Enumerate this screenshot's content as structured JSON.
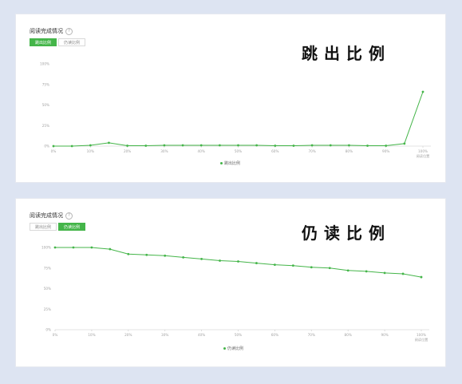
{
  "panels": [
    {
      "title": "阅读完成情况",
      "tabs": [
        {
          "label": "跳出比例",
          "active": true
        },
        {
          "label": "仍读比例",
          "active": false
        }
      ],
      "overlay_text": "跳出比例",
      "legend": "跳出比例",
      "help_icon": "?"
    },
    {
      "title": "阅读完成情况",
      "tabs": [
        {
          "label": "跳出比例",
          "active": false
        },
        {
          "label": "仍读比例",
          "active": true
        }
      ],
      "overlay_text": "仍读比例",
      "legend": "仍读比例",
      "help_icon": "?"
    }
  ],
  "chart_data": [
    {
      "type": "line",
      "y_ticks": [
        "100%",
        "75%",
        "50%",
        "25%",
        "0%"
      ],
      "x_ticks": [
        "0%",
        "10%",
        "20%",
        "30%",
        "40%",
        "50%",
        "60%",
        "70%",
        "80%",
        "90%",
        "100%"
      ],
      "x_axis_caption": "阅读位置",
      "ylim": [
        0,
        100
      ],
      "xlim": [
        0,
        100
      ],
      "color": "#44b549",
      "series": [
        {
          "name": "跳出比例",
          "x": [
            0,
            5,
            10,
            15,
            20,
            25,
            30,
            35,
            40,
            45,
            50,
            55,
            60,
            65,
            70,
            75,
            80,
            85,
            90,
            95,
            100
          ],
          "y": [
            0,
            0,
            1,
            4,
            0.5,
            0.5,
            1,
            1,
            1,
            1,
            1,
            1,
            0.5,
            0.5,
            1,
            1,
            1,
            0.5,
            0.5,
            3,
            66
          ]
        }
      ]
    },
    {
      "type": "line",
      "y_ticks": [
        "100%",
        "75%",
        "50%",
        "25%",
        "0%"
      ],
      "x_ticks": [
        "0%",
        "10%",
        "20%",
        "30%",
        "40%",
        "50%",
        "60%",
        "70%",
        "80%",
        "90%",
        "100%"
      ],
      "x_axis_caption": "阅读位置",
      "ylim": [
        0,
        100
      ],
      "xlim": [
        0,
        100
      ],
      "color": "#44b549",
      "series": [
        {
          "name": "仍读比例",
          "x": [
            0,
            5,
            10,
            15,
            20,
            25,
            30,
            35,
            40,
            45,
            50,
            55,
            60,
            65,
            70,
            75,
            80,
            85,
            90,
            95,
            100
          ],
          "y": [
            100,
            100,
            100,
            98,
            92,
            91,
            90,
            88,
            86,
            84,
            83,
            81,
            79,
            78,
            76,
            75,
            72,
            71,
            69,
            68,
            64
          ]
        }
      ]
    }
  ]
}
